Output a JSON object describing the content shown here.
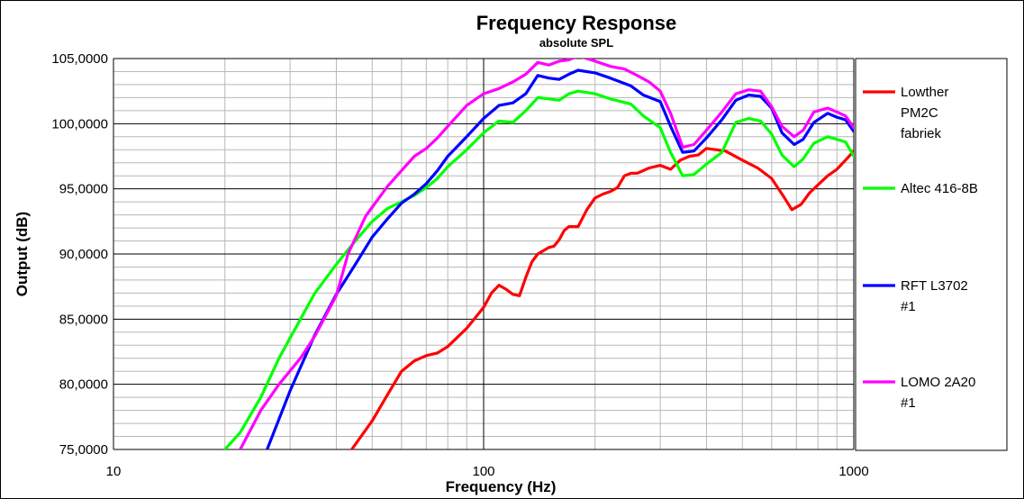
{
  "chart_data": {
    "type": "line",
    "title": "Frequency Response",
    "subtitle": "absolute SPL",
    "xlabel": "Frequency (Hz)",
    "ylabel": "Output (dB)",
    "x_scale": "log",
    "xlim": [
      10,
      1000
    ],
    "ylim": [
      75,
      105
    ],
    "x_ticks": [
      10,
      100,
      1000
    ],
    "x_tick_labels": [
      "10",
      "100",
      "1000"
    ],
    "y_ticks": [
      75,
      80,
      85,
      90,
      95,
      100,
      105
    ],
    "y_tick_labels": [
      "75,0000",
      "80,0000",
      "85,0000",
      "90,0000",
      "95,0000",
      "100,0000",
      "105,0000"
    ],
    "grid": true,
    "legend_position": "right",
    "series": [
      {
        "name": "Lowther PM2C fabriek",
        "legend_lines": [
          "Lowther",
          "PM2C",
          "fabriek"
        ],
        "color": "#ff0000",
        "points": [
          [
            44,
            75.0
          ],
          [
            50,
            77.2
          ],
          [
            55,
            79.2
          ],
          [
            60,
            81.0
          ],
          [
            65,
            81.8
          ],
          [
            70,
            82.2
          ],
          [
            75,
            82.4
          ],
          [
            80,
            82.9
          ],
          [
            90,
            84.3
          ],
          [
            100,
            85.9
          ],
          [
            105,
            87.0
          ],
          [
            110,
            87.6
          ],
          [
            115,
            87.3
          ],
          [
            120,
            86.9
          ],
          [
            125,
            86.8
          ],
          [
            130,
            88.2
          ],
          [
            135,
            89.4
          ],
          [
            140,
            90.0
          ],
          [
            150,
            90.5
          ],
          [
            155,
            90.6
          ],
          [
            160,
            91.1
          ],
          [
            165,
            91.8
          ],
          [
            170,
            92.1
          ],
          [
            180,
            92.1
          ],
          [
            190,
            93.4
          ],
          [
            200,
            94.3
          ],
          [
            210,
            94.6
          ],
          [
            220,
            94.8
          ],
          [
            230,
            95.1
          ],
          [
            240,
            96.0
          ],
          [
            250,
            96.2
          ],
          [
            260,
            96.2
          ],
          [
            280,
            96.6
          ],
          [
            300,
            96.8
          ],
          [
            320,
            96.5
          ],
          [
            340,
            97.2
          ],
          [
            360,
            97.5
          ],
          [
            380,
            97.6
          ],
          [
            400,
            98.1
          ],
          [
            450,
            97.9
          ],
          [
            500,
            97.2
          ],
          [
            550,
            96.6
          ],
          [
            600,
            95.8
          ],
          [
            650,
            94.3
          ],
          [
            680,
            93.4
          ],
          [
            720,
            93.8
          ],
          [
            760,
            94.7
          ],
          [
            800,
            95.3
          ],
          [
            850,
            96.0
          ],
          [
            900,
            96.5
          ],
          [
            950,
            97.2
          ],
          [
            1000,
            97.9
          ]
        ]
      },
      {
        "name": "Altec 416-8B",
        "legend_lines": [
          "Altec  416-8B"
        ],
        "color": "#00ff00",
        "points": [
          [
            20,
            75.0
          ],
          [
            22,
            76.3
          ],
          [
            25,
            79.0
          ],
          [
            28,
            82.0
          ],
          [
            32,
            85.0
          ],
          [
            35,
            87.0
          ],
          [
            40,
            89.2
          ],
          [
            45,
            91.0
          ],
          [
            50,
            92.5
          ],
          [
            55,
            93.5
          ],
          [
            60,
            94.0
          ],
          [
            65,
            94.5
          ],
          [
            70,
            95.1
          ],
          [
            75,
            95.8
          ],
          [
            80,
            96.7
          ],
          [
            90,
            98.0
          ],
          [
            100,
            99.3
          ],
          [
            110,
            100.2
          ],
          [
            120,
            100.1
          ],
          [
            130,
            101.0
          ],
          [
            140,
            102.0
          ],
          [
            150,
            101.9
          ],
          [
            160,
            101.8
          ],
          [
            170,
            102.3
          ],
          [
            180,
            102.5
          ],
          [
            200,
            102.3
          ],
          [
            220,
            101.9
          ],
          [
            250,
            101.5
          ],
          [
            270,
            100.6
          ],
          [
            300,
            99.7
          ],
          [
            320,
            97.8
          ],
          [
            345,
            96.0
          ],
          [
            370,
            96.1
          ],
          [
            400,
            96.9
          ],
          [
            440,
            97.8
          ],
          [
            480,
            100.1
          ],
          [
            520,
            100.4
          ],
          [
            560,
            100.2
          ],
          [
            600,
            99.2
          ],
          [
            640,
            97.6
          ],
          [
            690,
            96.7
          ],
          [
            730,
            97.3
          ],
          [
            780,
            98.5
          ],
          [
            850,
            99.0
          ],
          [
            900,
            98.8
          ],
          [
            950,
            98.6
          ],
          [
            1000,
            97.5
          ]
        ]
      },
      {
        "name": "RFT L3702 #1",
        "legend_lines": [
          "RFT L3702",
          "#1"
        ],
        "color": "#0000ff",
        "points": [
          [
            26,
            75.0
          ],
          [
            30,
            79.5
          ],
          [
            35,
            83.8
          ],
          [
            40,
            86.9
          ],
          [
            45,
            89.2
          ],
          [
            50,
            91.3
          ],
          [
            55,
            92.7
          ],
          [
            60,
            93.9
          ],
          [
            65,
            94.6
          ],
          [
            70,
            95.4
          ],
          [
            75,
            96.4
          ],
          [
            80,
            97.5
          ],
          [
            90,
            99.0
          ],
          [
            100,
            100.4
          ],
          [
            110,
            101.4
          ],
          [
            120,
            101.6
          ],
          [
            130,
            102.3
          ],
          [
            140,
            103.7
          ],
          [
            150,
            103.5
          ],
          [
            160,
            103.4
          ],
          [
            170,
            103.8
          ],
          [
            180,
            104.1
          ],
          [
            200,
            103.9
          ],
          [
            220,
            103.5
          ],
          [
            250,
            102.9
          ],
          [
            270,
            102.2
          ],
          [
            300,
            101.7
          ],
          [
            320,
            99.8
          ],
          [
            345,
            97.8
          ],
          [
            370,
            97.9
          ],
          [
            400,
            98.9
          ],
          [
            440,
            100.3
          ],
          [
            480,
            101.8
          ],
          [
            520,
            102.2
          ],
          [
            560,
            102.1
          ],
          [
            600,
            101.2
          ],
          [
            640,
            99.3
          ],
          [
            690,
            98.4
          ],
          [
            730,
            98.8
          ],
          [
            780,
            100.1
          ],
          [
            850,
            100.8
          ],
          [
            900,
            100.5
          ],
          [
            950,
            100.3
          ],
          [
            1000,
            99.4
          ]
        ]
      },
      {
        "name": "LOMO 2A20 #1",
        "legend_lines": [
          "LOMO 2A20",
          "#1"
        ],
        "color": "#ff00ff",
        "points": [
          [
            22,
            75.0
          ],
          [
            25,
            78.0
          ],
          [
            28,
            80.0
          ],
          [
            32,
            82.0
          ],
          [
            35,
            83.7
          ],
          [
            40,
            86.8
          ],
          [
            43,
            90.0
          ],
          [
            48,
            92.9
          ],
          [
            55,
            95.2
          ],
          [
            60,
            96.4
          ],
          [
            65,
            97.5
          ],
          [
            70,
            98.1
          ],
          [
            75,
            98.9
          ],
          [
            80,
            99.8
          ],
          [
            90,
            101.4
          ],
          [
            100,
            102.3
          ],
          [
            110,
            102.7
          ],
          [
            120,
            103.2
          ],
          [
            130,
            103.8
          ],
          [
            140,
            104.7
          ],
          [
            150,
            104.5
          ],
          [
            160,
            104.8
          ],
          [
            170,
            104.9
          ],
          [
            180,
            105.2
          ],
          [
            190,
            105.0
          ],
          [
            200,
            104.8
          ],
          [
            220,
            104.4
          ],
          [
            240,
            104.2
          ],
          [
            260,
            103.7
          ],
          [
            280,
            103.2
          ],
          [
            300,
            102.5
          ],
          [
            320,
            100.8
          ],
          [
            345,
            98.2
          ],
          [
            370,
            98.4
          ],
          [
            400,
            99.5
          ],
          [
            440,
            100.9
          ],
          [
            480,
            102.3
          ],
          [
            520,
            102.6
          ],
          [
            560,
            102.5
          ],
          [
            600,
            101.3
          ],
          [
            640,
            99.8
          ],
          [
            690,
            99.0
          ],
          [
            730,
            99.5
          ],
          [
            780,
            100.9
          ],
          [
            850,
            101.2
          ],
          [
            900,
            100.9
          ],
          [
            950,
            100.6
          ],
          [
            1000,
            99.7
          ]
        ]
      }
    ]
  }
}
